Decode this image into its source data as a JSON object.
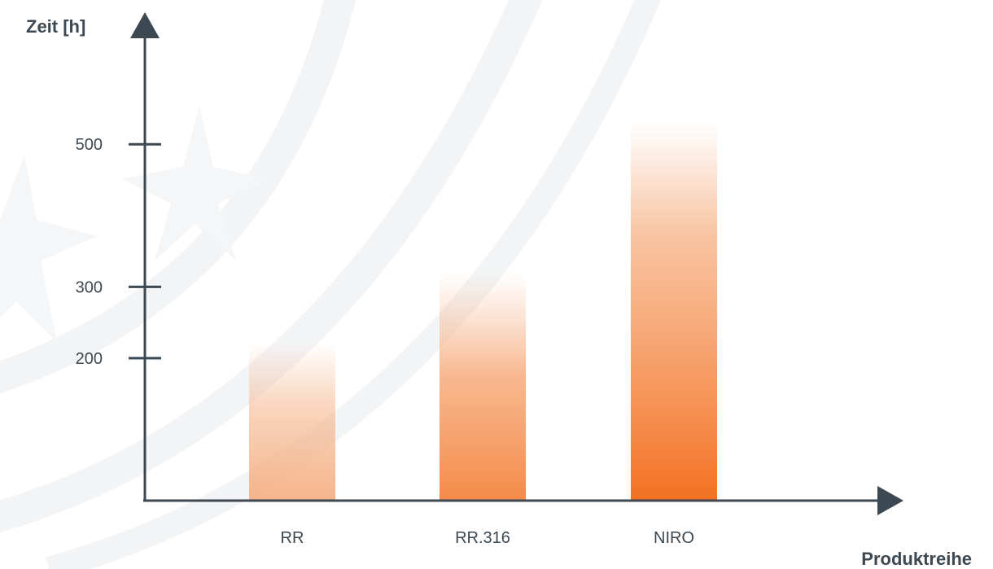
{
  "chart_data": {
    "type": "bar",
    "ylabel": "Zeit [h]",
    "xlabel": "Produktreihe",
    "categories": [
      "RR",
      "RR.316",
      "NIRO"
    ],
    "values": [
      220,
      320,
      530
    ],
    "yticks": [
      200,
      300,
      500
    ],
    "ylim": [
      0,
      800
    ],
    "grid": false,
    "legend": "none"
  },
  "colors": {
    "axis": "#3c4852",
    "bar_light": "#f5b48a",
    "bar_dark": "#f37021",
    "watermark": "#f3f4f5"
  }
}
